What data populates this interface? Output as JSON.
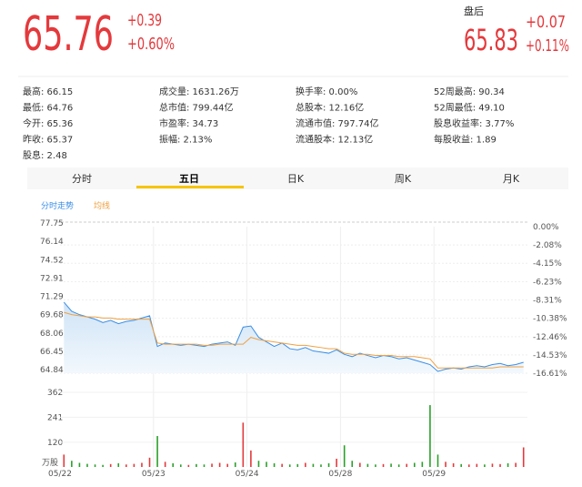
{
  "header": {
    "price": "65.76",
    "change": "+0.39",
    "change_pct": "+0.60%",
    "after_label": "盘后",
    "after_price": "65.83",
    "after_change": "+0.07",
    "after_change_pct": "+0.11%"
  },
  "stats": [
    [
      "最高: 66.15",
      "最低: 64.76",
      "今开: 65.36",
      "昨收: 65.37",
      "股息: 2.48"
    ],
    [
      "成交量: 1631.26万",
      "总市值: 799.44亿",
      "市盈率: 34.73",
      "振幅: 2.13%"
    ],
    [
      "换手率: 0.00%",
      "总股本: 12.16亿",
      "流通市值: 797.74亿",
      "流通股本: 12.13亿"
    ],
    [
      "52周最高: 90.34",
      "52周最低: 49.10",
      "股息收益率: 3.77%",
      "每股收益: 1.89"
    ]
  ],
  "tabs": {
    "items": [
      "分时",
      "五日",
      "日K",
      "周K",
      "月K"
    ],
    "active": 1
  },
  "chart_data": {
    "type": "line",
    "legend": [
      "分时走势",
      "均线"
    ],
    "days": [
      "05/22",
      "05/23",
      "05/24",
      "05/28",
      "05/29"
    ],
    "ylim": [
      64.84,
      77.75
    ],
    "yticks": [
      77.75,
      76.14,
      74.52,
      72.91,
      71.29,
      69.68,
      68.06,
      66.45,
      64.84
    ],
    "y2lim": [
      -16.61,
      0
    ],
    "y2ticks": [
      {
        "value": 0,
        "label": "0.00%"
      },
      {
        "value": -2.08,
        "label": "-2.08%"
      },
      {
        "value": -4.15,
        "label": "-4.15%"
      },
      {
        "value": -6.23,
        "label": "-6.23%"
      },
      {
        "value": -8.31,
        "label": "-8.31%"
      },
      {
        "value": -10.38,
        "label": "-10.38%"
      },
      {
        "value": -12.46,
        "label": "-12.46%"
      },
      {
        "value": -14.53,
        "label": "-14.53%"
      },
      {
        "value": -16.61,
        "label": "-16.61%"
      }
    ],
    "series": [
      {
        "name": "分时走势",
        "color": "#3a8ee6",
        "values": [
          71.1,
          70.3,
          70.0,
          69.8,
          69.6,
          69.3,
          69.5,
          69.2,
          69.4,
          69.5,
          69.7,
          69.9,
          67.2,
          67.5,
          67.4,
          67.3,
          67.4,
          67.3,
          67.2,
          67.4,
          67.5,
          67.6,
          67.3,
          68.9,
          69.0,
          68.0,
          67.6,
          67.2,
          67.5,
          67.0,
          66.9,
          67.1,
          66.8,
          66.7,
          66.6,
          66.9,
          66.5,
          66.3,
          66.6,
          66.4,
          66.2,
          66.4,
          66.3,
          66.1,
          66.2,
          66.0,
          65.8,
          65.6,
          65.0,
          65.2,
          65.3,
          65.2,
          65.4,
          65.5,
          65.4,
          65.6,
          65.7,
          65.5,
          65.6,
          65.8
        ]
      },
      {
        "name": "均线",
        "color": "#f0a040",
        "values": [
          70.2,
          70.0,
          69.9,
          69.8,
          69.8,
          69.7,
          69.7,
          69.6,
          69.6,
          69.6,
          69.6,
          69.6,
          67.5,
          67.4,
          67.4,
          67.4,
          67.4,
          67.4,
          67.3,
          67.3,
          67.4,
          67.4,
          67.4,
          67.4,
          68.0,
          67.8,
          67.7,
          67.6,
          67.5,
          67.4,
          67.3,
          67.3,
          67.2,
          67.1,
          67.0,
          67.0,
          66.6,
          66.5,
          66.5,
          66.5,
          66.4,
          66.4,
          66.4,
          66.3,
          66.3,
          66.3,
          66.2,
          66.1,
          65.3,
          65.3,
          65.3,
          65.3,
          65.3,
          65.3,
          65.3,
          65.3,
          65.4,
          65.4,
          65.4,
          65.4
        ]
      }
    ],
    "volume": {
      "unit": "万股",
      "vlim": [
        0,
        362
      ],
      "vticks": [
        362,
        241,
        120
      ],
      "values": [
        60,
        30,
        20,
        15,
        12,
        10,
        14,
        18,
        12,
        15,
        20,
        45,
        150,
        25,
        18,
        12,
        10,
        14,
        12,
        16,
        20,
        15,
        22,
        215,
        80,
        30,
        25,
        18,
        15,
        12,
        14,
        20,
        15,
        12,
        18,
        40,
        105,
        30,
        20,
        15,
        12,
        14,
        16,
        12,
        15,
        20,
        25,
        300,
        60,
        25,
        18,
        14,
        12,
        15,
        12,
        16,
        14,
        18,
        20,
        95
      ]
    }
  }
}
